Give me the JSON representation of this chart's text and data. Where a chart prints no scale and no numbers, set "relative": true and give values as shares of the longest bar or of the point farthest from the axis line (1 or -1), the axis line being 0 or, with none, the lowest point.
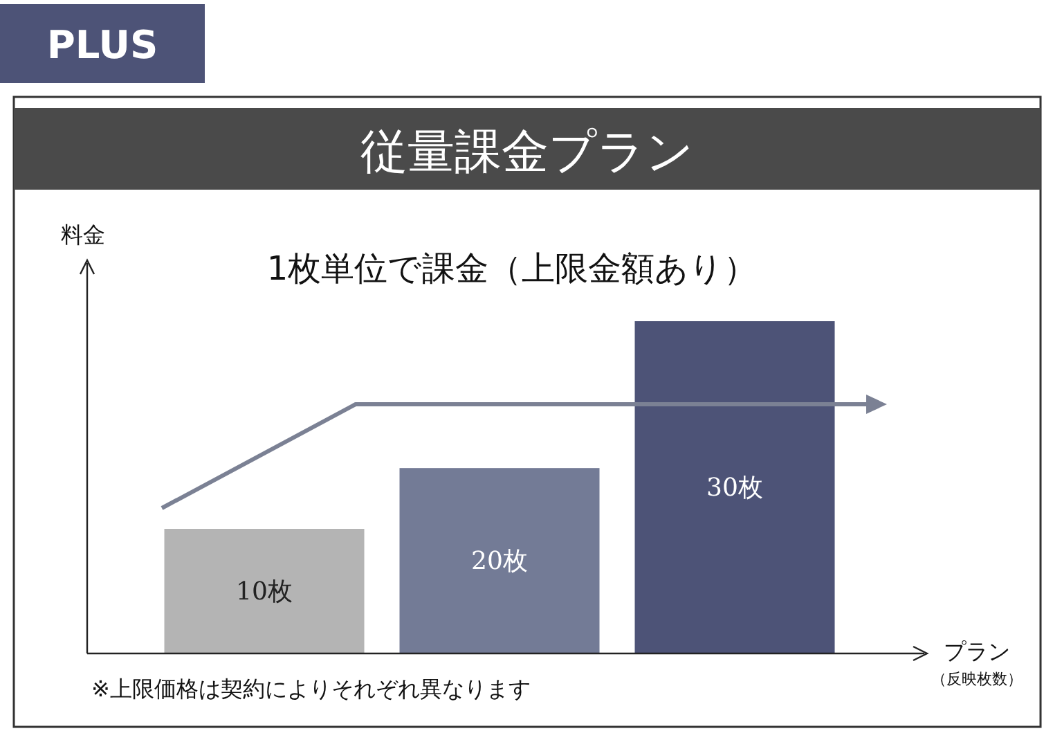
{
  "chart_data": {
    "type": "bar",
    "title": "従量課金プラン",
    "subtitle": "1枚単位で課金（上限金額あり）",
    "ylabel": "料金",
    "xlabel": "プラン",
    "categories": [
      "10枚",
      "20枚",
      "30枚"
    ],
    "relative": true,
    "colors": [
      "#b4b4b4",
      "#737b96",
      "#4d5377"
    ],
    "values": [
      0.375,
      0.558,
      1
    ],
    "annotations": [
      "PLUS",
      "（反映枚数）",
      "※上限価格は契約によりそれぞれ異なります"
    ]
  }
}
